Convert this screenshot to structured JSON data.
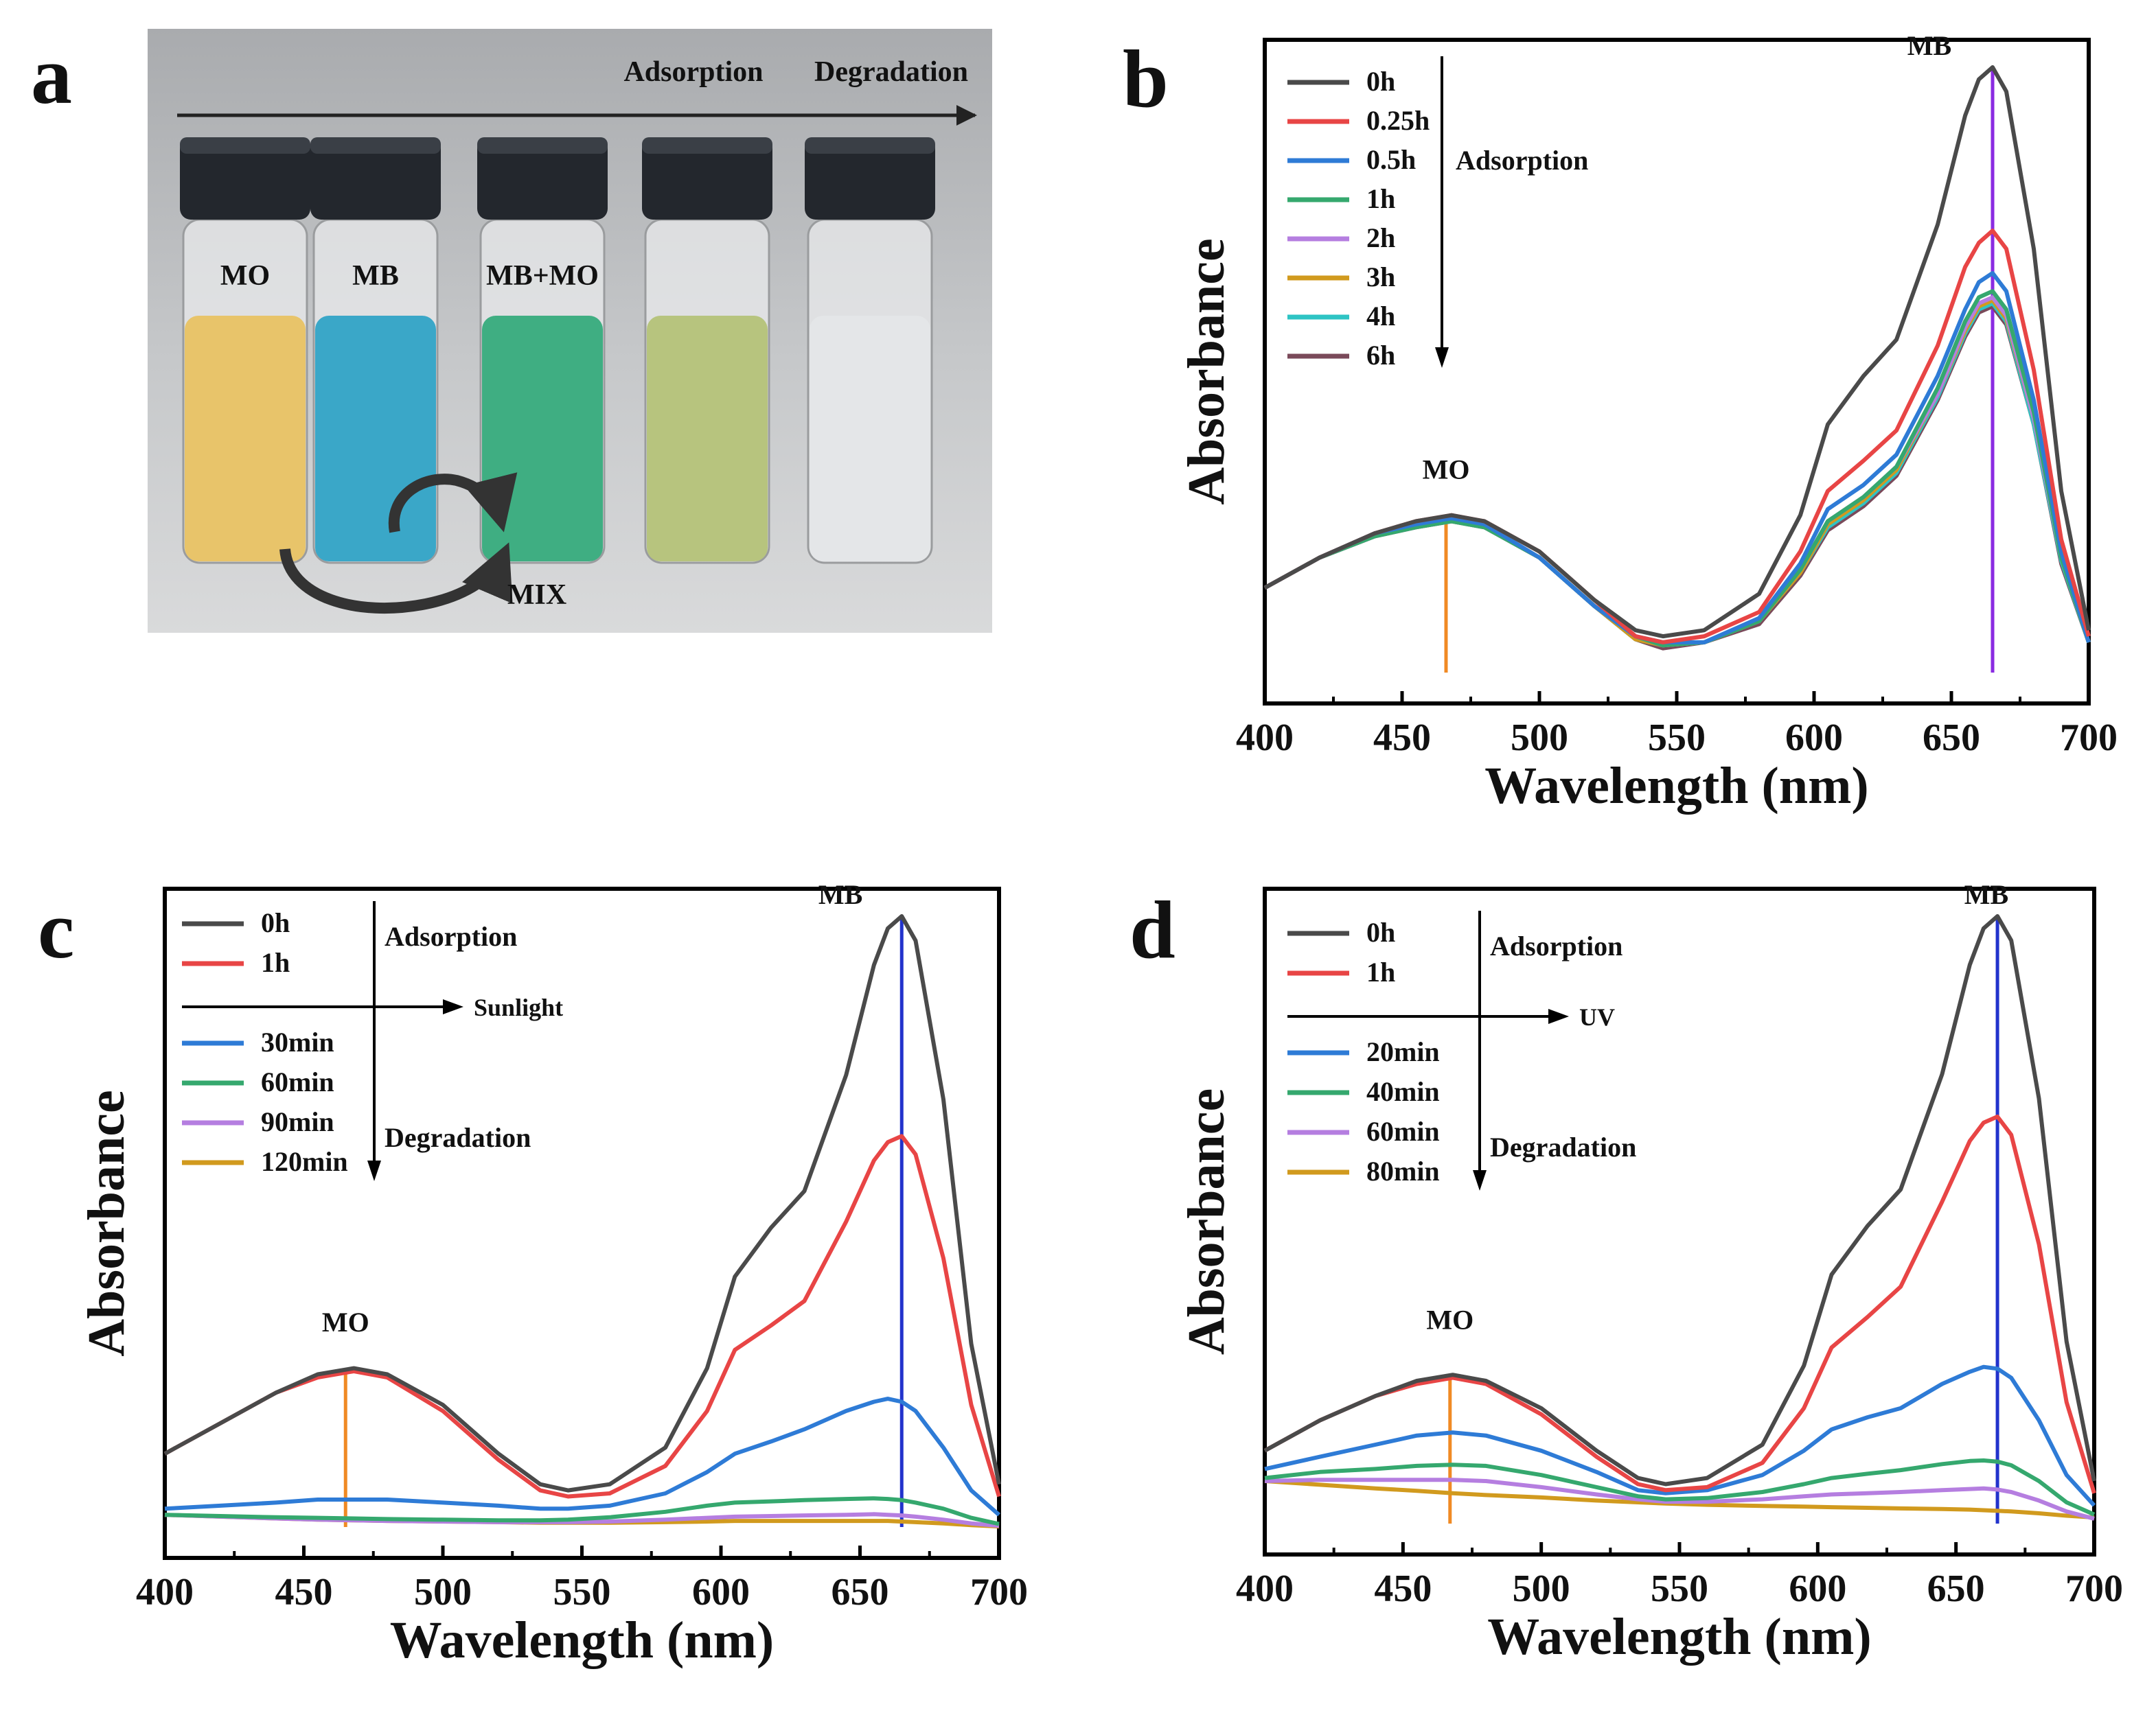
{
  "panel_a": {
    "letter": "a",
    "top_labels": [
      "Adsorption",
      "Degradation"
    ],
    "vials": [
      {
        "label": "MO",
        "color": "#e8c46a"
      },
      {
        "label": "MB",
        "color": "#3aa7c8"
      },
      {
        "label": "MB+MO",
        "color": "#3fae82"
      },
      {
        "label": "",
        "color": "#b7c47e"
      },
      {
        "label": "",
        "color": "#e4e6e8"
      }
    ],
    "mix_label": "MIX"
  },
  "chart_data": [
    {
      "panel": "b",
      "type": "line",
      "xlabel": "Wavelength (nm)",
      "ylabel": "Absorbance",
      "xlim": [
        400,
        700
      ],
      "ylim": [
        0,
        1.0
      ],
      "xticks": [
        400,
        450,
        500,
        550,
        600,
        650,
        700
      ],
      "x": [
        400,
        420,
        440,
        455,
        468,
        480,
        500,
        520,
        535,
        545,
        560,
        580,
        595,
        605,
        618,
        630,
        645,
        655,
        660,
        665,
        670,
        680,
        690,
        700
      ],
      "series": [
        {
          "name": "0h",
          "color": "#4a4a4a",
          "values": [
            0.14,
            0.19,
            0.23,
            0.25,
            0.26,
            0.25,
            0.2,
            0.12,
            0.07,
            0.06,
            0.07,
            0.13,
            0.26,
            0.41,
            0.49,
            0.55,
            0.74,
            0.92,
            0.98,
            1.0,
            0.96,
            0.7,
            0.3,
            0.07
          ]
        },
        {
          "name": "0.25h",
          "color": "#e84545",
          "values": [
            0.14,
            0.19,
            0.23,
            0.25,
            0.26,
            0.25,
            0.2,
            0.12,
            0.06,
            0.05,
            0.06,
            0.1,
            0.2,
            0.3,
            0.35,
            0.4,
            0.54,
            0.67,
            0.71,
            0.73,
            0.7,
            0.5,
            0.22,
            0.06
          ]
        },
        {
          "name": "0.5h",
          "color": "#2e7bd6",
          "values": [
            0.14,
            0.19,
            0.23,
            0.245,
            0.255,
            0.245,
            0.19,
            0.11,
            0.06,
            0.05,
            0.05,
            0.09,
            0.18,
            0.27,
            0.31,
            0.36,
            0.49,
            0.6,
            0.645,
            0.66,
            0.63,
            0.45,
            0.2,
            0.05
          ]
        },
        {
          "name": "1h",
          "color": "#35a86e",
          "values": [
            0.14,
            0.19,
            0.225,
            0.24,
            0.25,
            0.24,
            0.19,
            0.11,
            0.06,
            0.045,
            0.05,
            0.085,
            0.17,
            0.25,
            0.29,
            0.34,
            0.47,
            0.58,
            0.62,
            0.63,
            0.6,
            0.43,
            0.19,
            0.05
          ]
        },
        {
          "name": "2h",
          "color": "#b57ee0",
          "values": [
            0.14,
            0.19,
            0.225,
            0.24,
            0.25,
            0.24,
            0.19,
            0.11,
            0.06,
            0.045,
            0.05,
            0.085,
            0.17,
            0.25,
            0.29,
            0.34,
            0.46,
            0.57,
            0.61,
            0.62,
            0.59,
            0.42,
            0.19,
            0.05
          ]
        },
        {
          "name": "3h",
          "color": "#d19a1e",
          "values": [
            0.14,
            0.19,
            0.225,
            0.24,
            0.25,
            0.24,
            0.19,
            0.11,
            0.055,
            0.045,
            0.05,
            0.085,
            0.165,
            0.245,
            0.285,
            0.335,
            0.46,
            0.565,
            0.605,
            0.615,
            0.585,
            0.42,
            0.19,
            0.05
          ]
        },
        {
          "name": "4h",
          "color": "#2ec4c4",
          "values": [
            0.14,
            0.19,
            0.225,
            0.24,
            0.25,
            0.24,
            0.19,
            0.11,
            0.055,
            0.045,
            0.05,
            0.085,
            0.165,
            0.24,
            0.28,
            0.33,
            0.455,
            0.56,
            0.6,
            0.61,
            0.58,
            0.41,
            0.185,
            0.05
          ]
        },
        {
          "name": "6h",
          "color": "#7a4a5a",
          "values": [
            0.14,
            0.19,
            0.225,
            0.24,
            0.25,
            0.24,
            0.19,
            0.11,
            0.055,
            0.04,
            0.05,
            0.08,
            0.16,
            0.235,
            0.275,
            0.325,
            0.45,
            0.555,
            0.595,
            0.605,
            0.575,
            0.41,
            0.18,
            0.05
          ]
        }
      ],
      "vlines": [
        {
          "x": 466,
          "color": "#f08a24",
          "y1": 0,
          "y2": 0.25
        },
        {
          "x": 665,
          "color": "#8a2be2",
          "y1": 0,
          "y2": 1.0
        }
      ],
      "annotations": [
        {
          "text": "MO",
          "x": 466,
          "y": 0.3
        },
        {
          "text": "MB",
          "x": 642,
          "y": 1.0
        }
      ],
      "arrow_label": "Adsorption"
    },
    {
      "panel": "c",
      "type": "line",
      "xlabel": "Wavelength (nm)",
      "ylabel": "Absorbance",
      "xlim": [
        400,
        700
      ],
      "ylim": [
        0,
        1.0
      ],
      "xticks": [
        400,
        450,
        500,
        550,
        600,
        650,
        700
      ],
      "x": [
        400,
        420,
        440,
        455,
        468,
        480,
        500,
        520,
        535,
        545,
        560,
        580,
        595,
        605,
        618,
        630,
        645,
        655,
        660,
        665,
        670,
        680,
        690,
        700
      ],
      "series": [
        {
          "name": "0h",
          "color": "#4a4a4a",
          "values": [
            0.12,
            0.17,
            0.22,
            0.25,
            0.26,
            0.25,
            0.2,
            0.12,
            0.07,
            0.06,
            0.07,
            0.13,
            0.26,
            0.41,
            0.49,
            0.55,
            0.74,
            0.92,
            0.98,
            1.0,
            0.96,
            0.7,
            0.3,
            0.07
          ]
        },
        {
          "name": "1h",
          "color": "#e84545",
          "values": [
            0.12,
            0.17,
            0.22,
            0.245,
            0.255,
            0.245,
            0.19,
            0.11,
            0.06,
            0.05,
            0.055,
            0.1,
            0.19,
            0.29,
            0.33,
            0.37,
            0.5,
            0.6,
            0.63,
            0.64,
            0.61,
            0.44,
            0.2,
            0.05
          ]
        },
        {
          "name": "30min",
          "color": "#2e7bd6",
          "values": [
            0.03,
            0.035,
            0.04,
            0.045,
            0.045,
            0.045,
            0.04,
            0.035,
            0.03,
            0.03,
            0.035,
            0.055,
            0.09,
            0.12,
            0.14,
            0.16,
            0.19,
            0.205,
            0.21,
            0.205,
            0.19,
            0.13,
            0.06,
            0.02
          ]
        },
        {
          "name": "60min",
          "color": "#35a86e",
          "values": [
            0.02,
            0.018,
            0.016,
            0.015,
            0.014,
            0.013,
            0.012,
            0.011,
            0.011,
            0.012,
            0.016,
            0.025,
            0.035,
            0.04,
            0.042,
            0.044,
            0.046,
            0.047,
            0.046,
            0.044,
            0.04,
            0.03,
            0.015,
            0.005
          ]
        },
        {
          "name": "90min",
          "color": "#b57ee0",
          "values": [
            0.02,
            0.017,
            0.014,
            0.012,
            0.011,
            0.01,
            0.009,
            0.008,
            0.008,
            0.008,
            0.009,
            0.012,
            0.015,
            0.017,
            0.018,
            0.019,
            0.02,
            0.021,
            0.02,
            0.019,
            0.017,
            0.012,
            0.006,
            0.002
          ]
        },
        {
          "name": "120min",
          "color": "#d19a1e",
          "values": [
            0.02,
            0.017,
            0.014,
            0.012,
            0.011,
            0.01,
            0.009,
            0.008,
            0.007,
            0.007,
            0.007,
            0.008,
            0.009,
            0.01,
            0.01,
            0.01,
            0.01,
            0.01,
            0.01,
            0.009,
            0.008,
            0.006,
            0.003,
            0.001
          ]
        }
      ],
      "vlines": [
        {
          "x": 465,
          "color": "#f08a24",
          "y1": 0,
          "y2": 0.25
        },
        {
          "x": 665,
          "color": "#2233cc",
          "y1": 0,
          "y2": 1.0
        }
      ],
      "annotations": [
        {
          "text": "MO",
          "x": 465,
          "y": 0.3
        },
        {
          "text": "MB",
          "x": 643,
          "y": 1.0
        }
      ],
      "arrow_labels": [
        "Adsorption",
        "Sunlight",
        "Degradation"
      ],
      "legend_groups": [
        [
          "0h",
          "1h"
        ],
        [
          "30min",
          "60min",
          "90min",
          "120min"
        ]
      ]
    },
    {
      "panel": "d",
      "type": "line",
      "xlabel": "Wavelength (nm)",
      "ylabel": "Absorbance",
      "xlim": [
        400,
        700
      ],
      "ylim": [
        0,
        1.0
      ],
      "xticks": [
        400,
        450,
        500,
        550,
        600,
        650,
        700
      ],
      "x": [
        400,
        420,
        440,
        455,
        468,
        480,
        500,
        520,
        535,
        545,
        560,
        580,
        595,
        605,
        618,
        630,
        645,
        655,
        660,
        665,
        670,
        680,
        690,
        700
      ],
      "series": [
        {
          "name": "0h",
          "color": "#4a4a4a",
          "values": [
            0.12,
            0.17,
            0.21,
            0.235,
            0.245,
            0.235,
            0.19,
            0.12,
            0.075,
            0.065,
            0.075,
            0.13,
            0.26,
            0.41,
            0.49,
            0.55,
            0.74,
            0.92,
            0.98,
            1.0,
            0.96,
            0.7,
            0.3,
            0.07
          ]
        },
        {
          "name": "1h",
          "color": "#e84545",
          "values": [
            0.12,
            0.17,
            0.21,
            0.23,
            0.24,
            0.23,
            0.18,
            0.11,
            0.065,
            0.055,
            0.06,
            0.1,
            0.19,
            0.29,
            0.34,
            0.39,
            0.53,
            0.63,
            0.66,
            0.67,
            0.64,
            0.46,
            0.2,
            0.05
          ]
        },
        {
          "name": "20min",
          "color": "#2e7bd6",
          "values": [
            0.09,
            0.11,
            0.13,
            0.145,
            0.15,
            0.145,
            0.12,
            0.085,
            0.055,
            0.05,
            0.055,
            0.08,
            0.12,
            0.155,
            0.175,
            0.19,
            0.23,
            0.25,
            0.258,
            0.255,
            0.24,
            0.17,
            0.08,
            0.03
          ]
        },
        {
          "name": "40min",
          "color": "#35a86e",
          "values": [
            0.075,
            0.085,
            0.09,
            0.095,
            0.097,
            0.095,
            0.08,
            0.06,
            0.045,
            0.04,
            0.042,
            0.052,
            0.065,
            0.075,
            0.082,
            0.088,
            0.098,
            0.103,
            0.104,
            0.102,
            0.096,
            0.07,
            0.035,
            0.015
          ]
        },
        {
          "name": "60min",
          "color": "#b57ee0",
          "values": [
            0.07,
            0.072,
            0.072,
            0.072,
            0.072,
            0.07,
            0.06,
            0.048,
            0.04,
            0.036,
            0.036,
            0.04,
            0.045,
            0.048,
            0.05,
            0.052,
            0.055,
            0.057,
            0.058,
            0.056,
            0.052,
            0.038,
            0.02,
            0.008
          ]
        },
        {
          "name": "80min",
          "color": "#d19a1e",
          "values": [
            0.07,
            0.064,
            0.058,
            0.054,
            0.05,
            0.047,
            0.043,
            0.038,
            0.035,
            0.033,
            0.031,
            0.029,
            0.028,
            0.027,
            0.026,
            0.025,
            0.024,
            0.023,
            0.022,
            0.021,
            0.02,
            0.017,
            0.013,
            0.01
          ]
        }
      ],
      "vlines": [
        {
          "x": 467,
          "color": "#f08a24",
          "y1": 0,
          "y2": 0.245
        },
        {
          "x": 665,
          "color": "#2233cc",
          "y1": 0,
          "y2": 1.0
        }
      ],
      "annotations": [
        {
          "text": "MO",
          "x": 467,
          "y": 0.3
        },
        {
          "text": "MB",
          "x": 661,
          "y": 1.0
        }
      ],
      "arrow_labels": [
        "Adsorption",
        "UV",
        "Degradation"
      ],
      "legend_groups": [
        [
          "0h",
          "1h"
        ],
        [
          "20min",
          "40min",
          "60min",
          "80min"
        ]
      ]
    }
  ]
}
